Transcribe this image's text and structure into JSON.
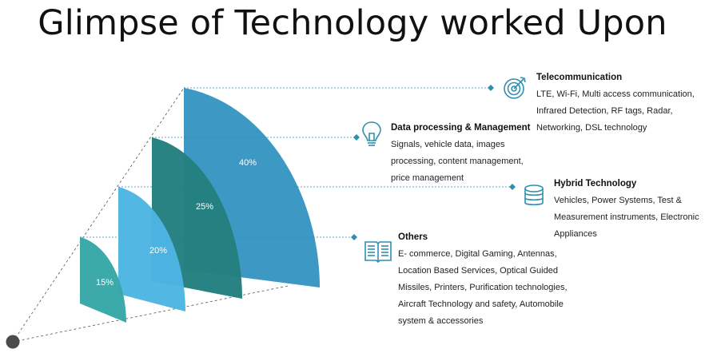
{
  "title": "Glimpse of Technology worked Upon",
  "colors": {
    "others": "#35A7A6",
    "hybrid": "#4DB5E3",
    "data_processing": "#237F7F",
    "telecom": "#2E8FBF",
    "marker": "#2F8FB0",
    "origin": "#4B4B4B"
  },
  "chart_data": {
    "type": "bar",
    "categories": [
      "Others",
      "Hybrid Technology",
      "Data processing & Management",
      "Telecommunication"
    ],
    "values": [
      15,
      20,
      25,
      40
    ],
    "labels": [
      "15%",
      "20%",
      "25%",
      "40%"
    ]
  },
  "items": {
    "telecom": {
      "heading": "Telecommunication",
      "lines": [
        "LTE, Wi-Fi, Multi access communication,",
        "Infrared Detection, RF tags, Radar,",
        "Networking, DSL technology"
      ],
      "icon": "target-icon"
    },
    "data_processing": {
      "heading": "Data processing & Management",
      "lines": [
        "Signals, vehicle data, images",
        "processing, content management,",
        "price management"
      ],
      "icon": "lightbulb-icon"
    },
    "hybrid": {
      "heading": "Hybrid Technology",
      "lines": [
        "Vehicles, Power Systems, Test &",
        "Measurement instruments, Electronic",
        "Appliances"
      ],
      "icon": "database-icon"
    },
    "others": {
      "heading": "Others",
      "lines": [
        "E- commerce, Digital Gaming, Antennas,",
        "Location Based Services, Optical Guided",
        "Missiles, Printers, Purification technologies,",
        "Aircraft Technology and safety, Automobile",
        "system & accessories"
      ],
      "icon": "book-icon"
    }
  }
}
